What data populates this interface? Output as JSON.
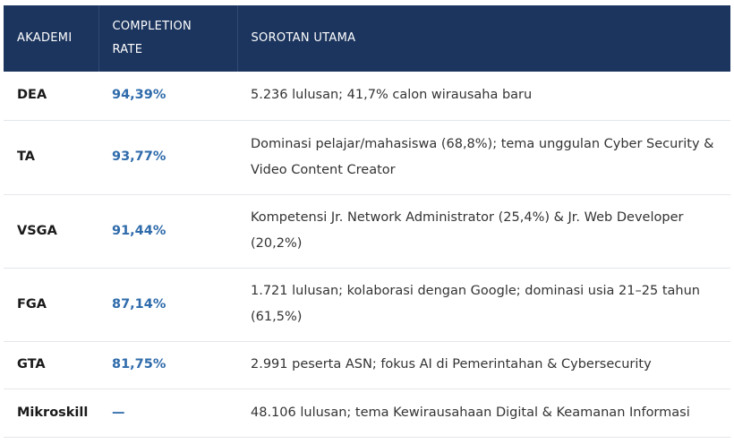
{
  "table": {
    "headers": {
      "academy": "AKADEMI",
      "rate": "COMPLETION RATE",
      "highlight": "SOROTAN UTAMA"
    },
    "rows": [
      {
        "academy": "DEA",
        "rate": "94,39%",
        "highlight": "5.236 lulusan; 41,7% calon wirausaha baru"
      },
      {
        "academy": "TA",
        "rate": "93,77%",
        "highlight": "Dominasi pelajar/mahasiswa (68,8%); tema unggulan Cyber Security & Video Content Creator"
      },
      {
        "academy": "VSGA",
        "rate": "91,44%",
        "highlight": "Kompetensi Jr. Network Administrator (25,4%) & Jr. Web Developer (20,2%)"
      },
      {
        "academy": "FGA",
        "rate": "87,14%",
        "highlight": "1.721 lulusan; kolaborasi dengan Google; dominasi usia 21–25 tahun (61,5%)"
      },
      {
        "academy": "GTA",
        "rate": "81,75%",
        "highlight": "2.991 peserta ASN; fokus AI di Pemerintahan & Cybersecurity"
      },
      {
        "academy": "Mikroskill",
        "rate": "—",
        "highlight": "48.106 lulusan; tema Kewirausahaan Digital & Keamanan Informasi"
      }
    ]
  },
  "colors": {
    "header_bg": "#1c355e",
    "header_text": "#ffffff",
    "rate_text": "#2f6bab",
    "row_divider": "#e3e6ea"
  }
}
